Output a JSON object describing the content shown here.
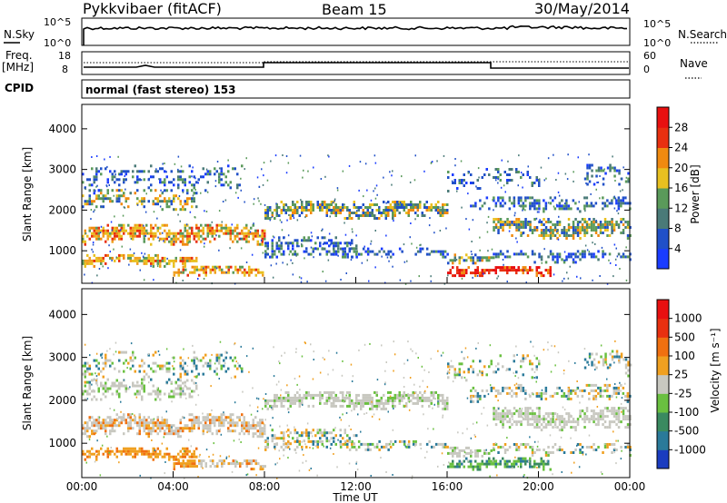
{
  "header": {
    "radar": "Pykkvibaer (fitACF)",
    "beam": "Beam 15",
    "date": "30/May/2014"
  },
  "panels": {
    "nsky": {
      "left_label": "N.Sky",
      "left_ticks": [
        "10^5",
        "10^0"
      ],
      "right_ticks": [
        "10^5",
        "10^0"
      ],
      "right_label": "N.Search"
    },
    "freq": {
      "left_label_1": "Freq.",
      "left_label_2": "[MHz]",
      "left_ticks": [
        "18",
        "8"
      ],
      "right_ticks": [
        "60",
        "0"
      ],
      "right_label": "Nave"
    },
    "cpid": {
      "label": "CPID",
      "mode": "normal (fast stereo) 153"
    }
  },
  "chart_data": [
    {
      "type": "heatmap",
      "name": "power",
      "ylabel": "Slant Range [km]",
      "xlabel": "",
      "ylim": [
        200,
        4600
      ],
      "y_ticks": [
        1000,
        2000,
        3000,
        4000
      ],
      "xlim": [
        "00:00",
        "24:00"
      ],
      "colorbar": {
        "label": "Power [dB]",
        "ticks": [
          4,
          8,
          12,
          16,
          20,
          24,
          28
        ],
        "range": [
          0,
          32
        ],
        "colors": [
          "#1a3cff",
          "#2050c8",
          "#4a7a78",
          "#5a9a5a",
          "#e8c020",
          "#f08a10",
          "#e83010",
          "#e81010"
        ]
      }
    },
    {
      "type": "heatmap",
      "name": "velocity",
      "ylabel": "Slant Range [km]",
      "xlabel": "Time UT",
      "ylim": [
        200,
        4600
      ],
      "y_ticks": [
        1000,
        2000,
        3000,
        4000
      ],
      "x_ticks": [
        "00:00",
        "04:00",
        "08:00",
        "12:00",
        "16:00",
        "20:00",
        "00:00"
      ],
      "colorbar": {
        "label": "Velocity [m s⁻¹]",
        "ticks": [
          "1000",
          "500",
          "100",
          "25",
          "-25",
          "-100",
          "-500",
          "-1000"
        ],
        "colors": [
          "#1a3cc0",
          "#2a7a9a",
          "#3a8a60",
          "#6ac040",
          "#c8c8c0",
          "#f0a020",
          "#f07010",
          "#e83010",
          "#e81010"
        ]
      }
    }
  ]
}
